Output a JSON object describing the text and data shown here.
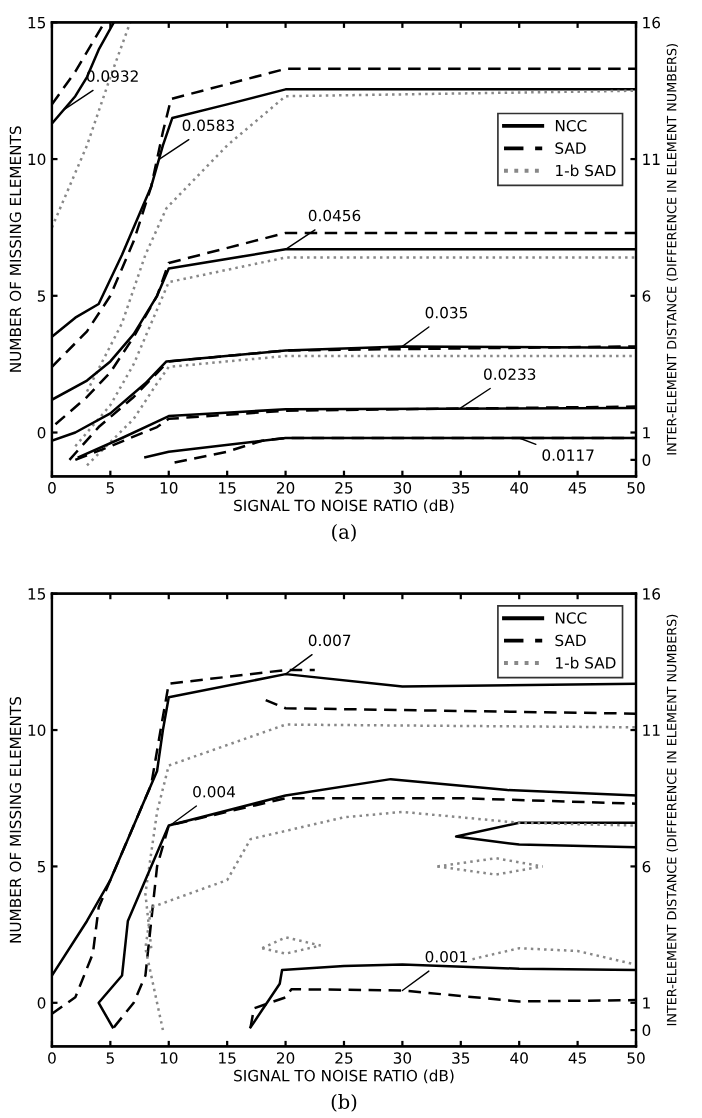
{
  "chart_data": [
    {
      "type": "line",
      "xlabel": "SIGNAL TO NOISE RATIO (dB)",
      "ylabel": "NUMBER OF MISSING ELEMENTS",
      "y2label": "INTER-ELEMENT DISTANCE (DIFFERENCE IN ELEMENT NUMBERS)",
      "xlim": [
        0,
        50
      ],
      "ylim": [
        -1.6,
        15
      ],
      "y2lim": [
        -0.6,
        16
      ],
      "xticks": [
        0,
        5,
        10,
        15,
        20,
        25,
        30,
        35,
        40,
        45,
        50
      ],
      "yticks": [
        0,
        5,
        10,
        15
      ],
      "y2ticks": [
        0,
        1,
        6,
        11,
        16
      ],
      "legend": "right",
      "series": [
        {
          "name": "NCC",
          "color": "#000000",
          "line_style": "solid",
          "x": [
            0,
            2,
            3,
            4,
            5.3
          ],
          "values": [
            11.3,
            12.3,
            13,
            14,
            15
          ]
        },
        {
          "name": "SAD",
          "color": "#000000",
          "line_style": "dashed",
          "x": [
            0,
            2,
            4.5
          ],
          "values": [
            12,
            13.2,
            15
          ]
        },
        {
          "name": "1-b SAD",
          "color": "#888888",
          "line_style": "dotted",
          "x": [
            0,
            3,
            5,
            6.7
          ],
          "values": [
            7.5,
            10.5,
            13,
            15
          ]
        },
        {
          "color": "#000000",
          "line_style": "solid",
          "x": [
            0,
            2,
            4,
            6,
            7.5,
            8.5,
            9.5,
            10.3,
            15,
            20,
            50
          ],
          "values": [
            3.5,
            4.2,
            4.7,
            6.5,
            8,
            9,
            10.5,
            11.5,
            12,
            12.55,
            12.55
          ]
        },
        {
          "color": "#000000",
          "line_style": "dashed",
          "x": [
            0,
            3,
            5,
            7,
            8.5,
            9.5,
            10.2,
            20,
            50
          ],
          "values": [
            2.4,
            3.7,
            5,
            7,
            9,
            11,
            12.2,
            13.3,
            13.3
          ]
        },
        {
          "color": "#888888",
          "line_style": "dotted",
          "x": [
            3,
            6,
            8,
            9.8,
            15,
            20,
            50
          ],
          "values": [
            1.5,
            4,
            6.5,
            8.2,
            10.5,
            12.3,
            12.5
          ]
        },
        {
          "color": "#000000",
          "line_style": "solid",
          "x": [
            0,
            3,
            5,
            7,
            9,
            10,
            20,
            50
          ],
          "values": [
            1.2,
            1.9,
            2.6,
            3.6,
            5,
            6,
            6.7,
            6.7
          ]
        },
        {
          "color": "#000000",
          "line_style": "dashed",
          "x": [
            0.3,
            3,
            5,
            7,
            9,
            10,
            20,
            50
          ],
          "values": [
            0.3,
            1.3,
            2.2,
            3.5,
            5,
            6.2,
            7.3,
            7.3
          ]
        },
        {
          "color": "#888888",
          "line_style": "dotted",
          "x": [
            2,
            5,
            7,
            9,
            10,
            20,
            50
          ],
          "values": [
            -0.5,
            1,
            2.5,
            4.5,
            5.5,
            6.4,
            6.4
          ]
        },
        {
          "color": "#000000",
          "line_style": "solid",
          "x": [
            0,
            2,
            5,
            8,
            9.8,
            20,
            30,
            50
          ],
          "values": [
            -0.3,
            0,
            0.7,
            1.8,
            2.6,
            3.0,
            3.15,
            3.1
          ]
        },
        {
          "color": "#000000",
          "line_style": "dashed",
          "x": [
            1.5,
            4,
            7,
            9.5,
            10,
            20,
            50
          ],
          "values": [
            -1,
            0.2,
            1.3,
            2.4,
            2.6,
            3.0,
            3.15
          ]
        },
        {
          "color": "#888888",
          "line_style": "dotted",
          "x": [
            3,
            7,
            9,
            10,
            20,
            50
          ],
          "values": [
            -1.2,
            0.5,
            1.8,
            2.4,
            2.8,
            2.8
          ]
        },
        {
          "color": "#000000",
          "line_style": "solid",
          "x": [
            2.3,
            6,
            9,
            10,
            20,
            50
          ],
          "values": [
            -0.9,
            -0.2,
            0.4,
            0.6,
            0.85,
            0.9
          ]
        },
        {
          "color": "#000000",
          "line_style": "dashed",
          "x": [
            2,
            5,
            9,
            10,
            20,
            50
          ],
          "values": [
            -1,
            -0.5,
            0.2,
            0.5,
            0.8,
            0.95
          ]
        },
        {
          "color": "#000000",
          "line_style": "solid",
          "x": [
            8,
            10,
            20,
            50
          ],
          "values": [
            -0.9,
            -0.7,
            -0.2,
            -0.2
          ]
        },
        {
          "color": "#000000",
          "line_style": "dashed",
          "x": [
            10.5,
            15,
            18,
            20,
            50
          ],
          "values": [
            -1.1,
            -0.7,
            -0.3,
            -0.2,
            -0.2
          ]
        }
      ],
      "annotations": [
        {
          "text": "0.0932",
          "x": 1,
          "y": 11.8
        },
        {
          "text": "0.0583",
          "x": 9.2,
          "y": 10
        },
        {
          "text": "0.0456",
          "x": 20,
          "y": 6.7
        },
        {
          "text": "0.035",
          "x": 30,
          "y": 3.15
        },
        {
          "text": "0.0233",
          "x": 35,
          "y": 0.9
        },
        {
          "text": "0.0117",
          "x": 40,
          "y": -0.2
        },
        "(a)"
      ]
    },
    {
      "type": "line",
      "xlabel": "SIGNAL TO NOISE RATIO (dB)",
      "ylabel": "NUMBER OF MISSING ELEMENTS",
      "y2label": "INTER-ELEMENT DISTANCE (DIFFERENCE IN ELEMENT NUMBERS)",
      "xlim": [
        0,
        50
      ],
      "ylim": [
        -1.6,
        15
      ],
      "y2lim": [
        -0.6,
        16
      ],
      "xticks": [
        0,
        5,
        10,
        15,
        20,
        25,
        30,
        35,
        40,
        45,
        50
      ],
      "yticks": [
        0,
        5,
        10,
        15
      ],
      "y2ticks": [
        0,
        1,
        6,
        11,
        16
      ],
      "legend": "top right",
      "series": [
        {
          "name": "NCC",
          "color": "#000000",
          "line_style": "solid",
          "x": [
            0,
            3,
            5,
            6.5,
            8,
            9,
            9.5,
            10,
            20,
            30,
            50
          ],
          "values": [
            1.0,
            3.0,
            4.5,
            6,
            7.5,
            8.5,
            10,
            11.2,
            12.05,
            11.6,
            11.7
          ]
        },
        {
          "name": "SAD",
          "color": "#000000",
          "line_style": "dashed",
          "x": [
            0,
            2,
            3.5,
            4,
            5.5,
            7,
            8.5,
            9.3,
            10,
            20,
            22.5
          ],
          "values": [
            -0.4,
            0.2,
            1.8,
            3.5,
            5,
            6.5,
            8,
            10,
            11.7,
            12.2,
            12.2
          ]
        },
        {
          "name": "1-b SAD",
          "color": "#888888",
          "line_style": "dotted",
          "x": [
            8.5,
            8,
            9,
            10,
            20,
            50
          ],
          "values": [
            2,
            4,
            7,
            8.7,
            10.2,
            10.1
          ]
        },
        {
          "color": "#000000",
          "line_style": "dashed",
          "x": [
            18.3,
            20,
            50
          ],
          "values": [
            11.1,
            10.8,
            10.6
          ]
        },
        {
          "color": "#000000",
          "line_style": "solid",
          "x": [
            5.2,
            4,
            6,
            6.5,
            8,
            9,
            10,
            20,
            29,
            39,
            50
          ],
          "values": [
            -0.9,
            0,
            1,
            3,
            4.5,
            5.5,
            6.5,
            7.6,
            8.2,
            7.8,
            7.6
          ]
        },
        {
          "color": "#000000",
          "line_style": "dashed",
          "x": [
            5.3,
            7,
            8,
            8.5,
            9,
            10,
            20,
            35,
            50
          ],
          "values": [
            -0.9,
            0,
            1,
            3,
            5,
            6.5,
            7.5,
            7.5,
            7.3
          ]
        },
        {
          "color": "#000000",
          "line_style": "solid",
          "x": [
            50,
            40,
            34.6,
            40,
            50
          ],
          "values": [
            6.6,
            6.6,
            6.1,
            5.8,
            5.7
          ]
        },
        {
          "color": "#888888",
          "line_style": "dotted",
          "x": [
            9.5,
            8,
            8.5,
            15,
            17,
            25,
            30,
            40,
            50
          ],
          "values": [
            -1,
            2,
            3.5,
            4.5,
            6,
            6.8,
            7,
            6.6,
            6.5
          ]
        },
        {
          "color": "#000000",
          "line_style": "solid",
          "x": [
            17,
            19.5,
            19.7,
            25,
            30,
            40,
            50
          ],
          "values": [
            -0.9,
            0.7,
            1.2,
            1.35,
            1.4,
            1.25,
            1.2
          ]
        },
        {
          "color": "#000000",
          "line_style": "dashed",
          "x": [
            17,
            17.3,
            20,
            20.5,
            30,
            40,
            50
          ],
          "values": [
            -0.9,
            -0.2,
            0.2,
            0.5,
            0.45,
            0.05,
            0.1
          ]
        },
        {
          "color": "#888888",
          "line_style": "dotted",
          "x": [
            18,
            20,
            23
          ],
          "values": [
            2,
            2.4,
            2.1
          ]
        },
        {
          "color": "#888888",
          "line_style": "dotted",
          "x": [
            18,
            20,
            23
          ],
          "values": [
            2,
            1.8,
            2.1
          ]
        },
        {
          "color": "#888888",
          "line_style": "dotted",
          "x": [
            33,
            38,
            42
          ],
          "values": [
            5,
            5.3,
            5
          ]
        },
        {
          "color": "#888888",
          "line_style": "dotted",
          "x": [
            33,
            38,
            42
          ],
          "values": [
            5,
            4.7,
            5
          ]
        },
        {
          "color": "#888888",
          "line_style": "dotted",
          "x": [
            36,
            40,
            45,
            50
          ],
          "values": [
            1.6,
            2.0,
            1.9,
            1.4
          ]
        }
      ],
      "annotations": [
        {
          "text": "0.007",
          "x": 20,
          "y": 12.05
        },
        {
          "text": "0.004",
          "x": 10.1,
          "y": 6.5
        },
        {
          "text": "0.001",
          "x": 30,
          "y": 0.45
        },
        "(b)"
      ]
    }
  ]
}
